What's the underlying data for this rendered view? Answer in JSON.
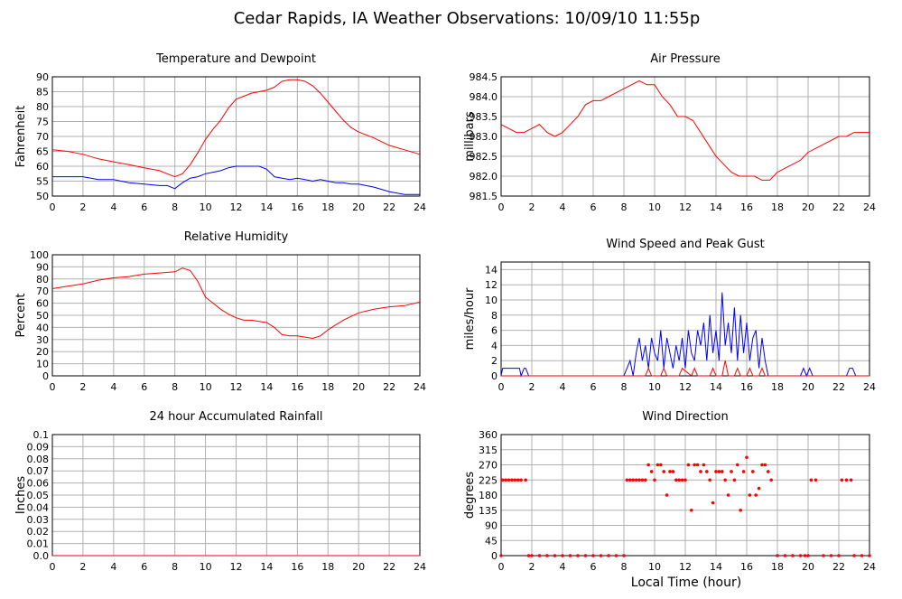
{
  "page": {
    "title": "Cedar Rapids, IA Weather Observations: 10/09/10 11:55p",
    "xlabel": "Local Time (hour)"
  },
  "colors": {
    "red": "#ff0000",
    "blue": "#0000ff",
    "grid": "#b0b0b0",
    "axis": "#000000"
  },
  "chart_data": [
    {
      "type": "line",
      "title": "Temperature and Dewpoint",
      "ylabel": "Fahrenheit",
      "xlim": [
        0,
        24
      ],
      "ylim": [
        50,
        90
      ],
      "xticks": [
        0,
        2,
        4,
        6,
        8,
        10,
        12,
        14,
        16,
        18,
        20,
        22,
        24
      ],
      "yticks": [
        50,
        55,
        60,
        65,
        70,
        75,
        80,
        85,
        90
      ],
      "ytick_decimals": 0,
      "series": [
        {
          "color": "#ff0000",
          "x": [
            0,
            1,
            2,
            3,
            4,
            5,
            6,
            7,
            7.5,
            8,
            8.5,
            9,
            9.5,
            10,
            10.5,
            11,
            11.5,
            12,
            12.5,
            13,
            13.5,
            14,
            14.5,
            15,
            15.5,
            16,
            16.5,
            17,
            17.5,
            18,
            18.5,
            19,
            19.5,
            20,
            21,
            22,
            23,
            24
          ],
          "y": [
            65.5,
            65,
            64,
            62.5,
            61.5,
            60.5,
            59.5,
            58.5,
            57.5,
            56.5,
            57.5,
            60.5,
            64.5,
            69,
            72.5,
            75.5,
            79.5,
            82.5,
            83.5,
            84.5,
            85,
            85.5,
            86.5,
            88.5,
            89,
            89,
            88.5,
            87,
            84.5,
            81.5,
            78.5,
            75.5,
            73,
            71.5,
            69.5,
            67,
            65.5,
            64
          ]
        },
        {
          "color": "#0000ff",
          "x": [
            0,
            1,
            2,
            3,
            4,
            5,
            6,
            7,
            7.5,
            8,
            8.5,
            9,
            9.5,
            10,
            10.5,
            11,
            11.5,
            12,
            12.5,
            13,
            13.5,
            14,
            14.5,
            15,
            15.5,
            16,
            16.5,
            17,
            17.5,
            18,
            18.5,
            19,
            19.5,
            20,
            21,
            22,
            23,
            24
          ],
          "y": [
            56.5,
            56.5,
            56.5,
            55.5,
            55.5,
            54.5,
            54,
            53.5,
            53.5,
            52.5,
            54.5,
            56,
            56.5,
            57.5,
            58,
            58.5,
            59.5,
            60,
            60,
            60,
            60,
            59,
            56.5,
            56,
            55.5,
            56,
            55.5,
            55,
            55.5,
            55,
            54.5,
            54.5,
            54,
            54,
            53,
            51.5,
            50.5,
            50.5
          ]
        }
      ]
    },
    {
      "type": "line",
      "title": "Air Pressure",
      "ylabel": "millibars",
      "xlim": [
        0,
        24
      ],
      "ylim": [
        981.5,
        984.5
      ],
      "xticks": [
        0,
        2,
        4,
        6,
        8,
        10,
        12,
        14,
        16,
        18,
        20,
        22,
        24
      ],
      "yticks": [
        981.5,
        982.0,
        982.5,
        983.0,
        983.5,
        984.0,
        984.5
      ],
      "ytick_decimals": 1,
      "series": [
        {
          "color": "#ff0000",
          "x": [
            0,
            0.5,
            1,
            1.5,
            2,
            2.5,
            3,
            3.5,
            4,
            4.5,
            5,
            5.5,
            6,
            6.5,
            7,
            7.5,
            8,
            8.5,
            9,
            9.5,
            10,
            10.5,
            11,
            11.5,
            12,
            12.5,
            13,
            13.5,
            14,
            14.5,
            15,
            15.5,
            16,
            16.5,
            17,
            17.5,
            18,
            18.5,
            19,
            19.5,
            20,
            20.5,
            21,
            21.5,
            22,
            22.5,
            23,
            23.5,
            24
          ],
          "y": [
            983.3,
            983.2,
            983.1,
            983.1,
            983.2,
            983.3,
            983.1,
            983.0,
            983.1,
            983.3,
            983.5,
            983.8,
            983.9,
            983.9,
            984.0,
            984.1,
            984.2,
            984.3,
            984.4,
            984.3,
            984.3,
            984.0,
            983.8,
            983.5,
            983.5,
            983.4,
            983.1,
            982.8,
            982.5,
            982.3,
            982.1,
            982.0,
            982.0,
            982.0,
            981.9,
            981.9,
            982.1,
            982.2,
            982.3,
            982.4,
            982.6,
            982.7,
            982.8,
            982.9,
            983.0,
            983.0,
            983.1,
            983.1,
            983.1
          ]
        }
      ]
    },
    {
      "type": "line",
      "title": "Relative Humidity",
      "ylabel": "Percent",
      "xlim": [
        0,
        24
      ],
      "ylim": [
        0,
        100
      ],
      "xticks": [
        0,
        2,
        4,
        6,
        8,
        10,
        12,
        14,
        16,
        18,
        20,
        22,
        24
      ],
      "yticks": [
        0,
        10,
        20,
        30,
        40,
        50,
        60,
        70,
        80,
        90,
        100
      ],
      "ytick_decimals": 0,
      "series": [
        {
          "color": "#ff0000",
          "x": [
            0,
            1,
            2,
            3,
            4,
            5,
            6,
            7,
            8,
            8.5,
            9,
            9.5,
            10,
            10.5,
            11,
            11.5,
            12,
            12.5,
            13,
            13.5,
            14,
            14.5,
            15,
            15.5,
            16,
            16.5,
            17,
            17.5,
            18,
            18.5,
            19,
            19.5,
            20,
            21,
            22,
            23,
            24
          ],
          "y": [
            72,
            74,
            76,
            79,
            81,
            82,
            84,
            85,
            86,
            89,
            87,
            78,
            65,
            60,
            55,
            51,
            48,
            46,
            46,
            45,
            44,
            40,
            34,
            33,
            33,
            32,
            31,
            33,
            38,
            42,
            46,
            49,
            52,
            55,
            57,
            58,
            61
          ]
        }
      ]
    },
    {
      "type": "line",
      "title": "Wind Speed and Peak Gust",
      "ylabel": "miles/hour",
      "xlim": [
        0,
        24
      ],
      "ylim": [
        0,
        15
      ],
      "xticks": [
        0,
        2,
        4,
        6,
        8,
        10,
        12,
        14,
        16,
        18,
        20,
        22,
        24
      ],
      "yticks": [
        0,
        2,
        4,
        6,
        8,
        10,
        12,
        14
      ],
      "ytick_decimals": 0,
      "series": [
        {
          "color": "#0000ff",
          "x": [
            0,
            0.1,
            0.2,
            1.2,
            1.3,
            1.5,
            1.6,
            1.8,
            2,
            8,
            8.2,
            8.4,
            8.6,
            8.8,
            9,
            9.2,
            9.4,
            9.6,
            9.8,
            10,
            10.2,
            10.4,
            10.6,
            10.8,
            11,
            11.2,
            11.4,
            11.6,
            11.8,
            12,
            12.2,
            12.4,
            12.6,
            12.8,
            13,
            13.2,
            13.4,
            13.6,
            13.8,
            14,
            14.2,
            14.4,
            14.6,
            14.8,
            15,
            15.2,
            15.4,
            15.6,
            15.8,
            16,
            16.2,
            16.4,
            16.6,
            16.8,
            17,
            17.2,
            17.4,
            17.6,
            19.5,
            19.7,
            19.9,
            20.1,
            20.3,
            22.5,
            22.7,
            22.9,
            23.1,
            23.3,
            24
          ],
          "y": [
            0,
            1,
            1,
            1,
            0,
            1,
            1,
            0,
            0,
            0,
            1,
            2,
            0,
            3,
            5,
            2,
            4,
            1,
            5,
            3,
            2,
            6,
            1,
            5,
            3,
            1,
            4,
            2,
            5,
            1,
            6,
            3,
            2,
            6,
            4,
            7,
            2,
            8,
            3,
            6,
            2,
            11,
            4,
            7,
            3,
            9,
            2,
            8,
            3,
            7,
            2,
            5,
            6,
            1,
            5,
            2,
            0,
            0,
            0,
            1,
            0,
            1,
            0,
            0,
            1,
            1,
            0,
            0,
            0
          ]
        },
        {
          "color": "#ff0000",
          "x": [
            0,
            9.4,
            9.6,
            9.8,
            10.4,
            10.6,
            10.8,
            11.6,
            11.8,
            12.4,
            12.6,
            12.8,
            13.6,
            13.8,
            14,
            14.4,
            14.6,
            14.8,
            15.2,
            15.4,
            15.6,
            16,
            16.2,
            16.4,
            16.8,
            17,
            17.2,
            24
          ],
          "y": [
            0,
            0,
            1,
            0,
            0,
            1,
            0,
            0,
            1,
            0,
            1,
            0,
            0,
            1,
            0,
            0,
            2,
            0,
            0,
            1,
            0,
            0,
            1,
            0,
            0,
            1,
            0,
            0
          ]
        }
      ]
    },
    {
      "type": "line",
      "title": "24 hour Accumulated Rainfall",
      "ylabel": "Inches",
      "xlim": [
        0,
        24
      ],
      "ylim": [
        0,
        0.1
      ],
      "xticks": [
        0,
        2,
        4,
        6,
        8,
        10,
        12,
        14,
        16,
        18,
        20,
        22,
        24
      ],
      "yticks": [
        0.0,
        0.01,
        0.02,
        0.03,
        0.04,
        0.05,
        0.06,
        0.07,
        0.08,
        0.09,
        0.1
      ],
      "ytick_labels": [
        "0.0",
        "0.01",
        "0.02",
        "0.03",
        "0.04",
        "0.05",
        "0.06",
        "0.07",
        "0.08",
        "0.09",
        "0.1"
      ],
      "series": [
        {
          "color": "#ff0000",
          "x": [
            0,
            24
          ],
          "y": [
            0,
            0
          ]
        }
      ]
    },
    {
      "type": "scatter",
      "title": "Wind Direction",
      "ylabel": "degrees",
      "xlim": [
        0,
        24
      ],
      "ylim": [
        0,
        360
      ],
      "xticks": [
        0,
        2,
        4,
        6,
        8,
        10,
        12,
        14,
        16,
        18,
        20,
        22,
        24
      ],
      "yticks": [
        0,
        45,
        90,
        135,
        180,
        225,
        270,
        315,
        360
      ],
      "ytick_decimals": 0,
      "series": [
        {
          "color": "#ff0000",
          "x": [
            0,
            0.1,
            0.3,
            0.5,
            0.7,
            0.9,
            1.1,
            1.3,
            1.6,
            1.8,
            2,
            2.5,
            3,
            3.5,
            4,
            4.5,
            5,
            5.5,
            6,
            6.5,
            7,
            7.5,
            8,
            8.2,
            8.4,
            8.6,
            8.8,
            9,
            9.2,
            9.4,
            9.6,
            9.8,
            10,
            10.2,
            10.4,
            10.6,
            10.8,
            11,
            11.2,
            11.4,
            11.6,
            11.8,
            12,
            12.2,
            12.4,
            12.6,
            12.8,
            13,
            13.2,
            13.4,
            13.6,
            13.8,
            14,
            14.2,
            14.4,
            14.6,
            14.8,
            15,
            15.2,
            15.4,
            15.6,
            15.8,
            16,
            16.2,
            16.4,
            16.6,
            16.8,
            17,
            17.2,
            17.4,
            17.6,
            18,
            18.5,
            19,
            19.5,
            19.8,
            20,
            20.2,
            20.5,
            21,
            21.5,
            22,
            22.2,
            22.5,
            22.8,
            23,
            23.5,
            24
          ],
          "y": [
            0,
            225,
            225,
            225,
            225,
            225,
            225,
            225,
            225,
            0,
            0,
            0,
            0,
            0,
            0,
            0,
            0,
            0,
            0,
            0,
            0,
            0,
            0,
            225,
            225,
            225,
            225,
            225,
            225,
            225,
            270,
            250,
            225,
            270,
            270,
            250,
            180,
            250,
            250,
            225,
            225,
            225,
            225,
            270,
            135,
            270,
            270,
            250,
            270,
            250,
            225,
            157,
            250,
            250,
            250,
            225,
            180,
            250,
            225,
            270,
            135,
            250,
            292,
            180,
            250,
            180,
            200,
            270,
            270,
            250,
            225,
            0,
            0,
            0,
            0,
            0,
            0,
            225,
            225,
            0,
            0,
            0,
            225,
            225,
            225,
            0,
            0,
            0
          ]
        }
      ]
    }
  ]
}
